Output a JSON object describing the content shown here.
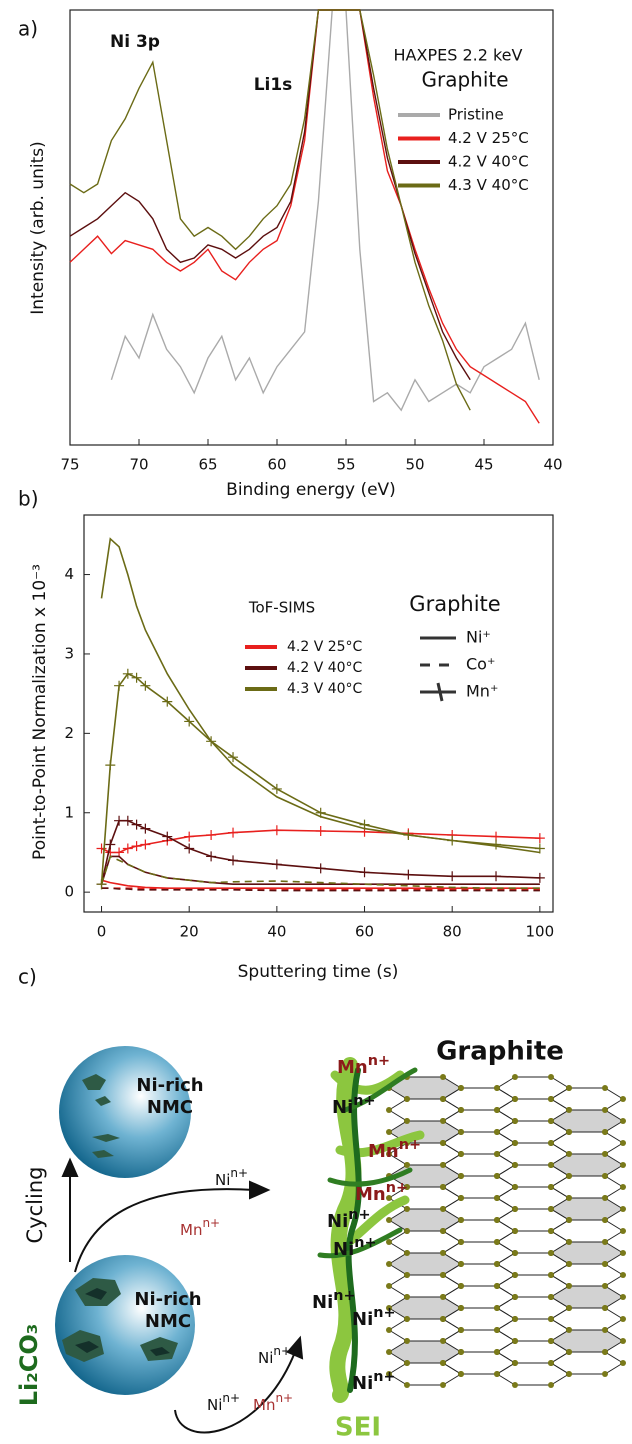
{
  "chart_data": [
    {
      "type": "line",
      "panel_label": "a)",
      "xlabel": "Binding energy (eV)",
      "ylabel": "Intensity (arb. units)",
      "annotations": [
        "Ni 3p",
        "Li1s"
      ],
      "legend_title": "HAXPES 2.2 keV",
      "legend_subtitle": "Graphite",
      "x": [
        75,
        74,
        73,
        72,
        71,
        70,
        69,
        68,
        67,
        66,
        65,
        64,
        63,
        62,
        61,
        60,
        59,
        58,
        57,
        56,
        55,
        54,
        53,
        52,
        51,
        50,
        49,
        48,
        47,
        46,
        45,
        44,
        43,
        42,
        41,
        40
      ],
      "xlim": [
        75,
        40
      ],
      "xticks": [
        75,
        70,
        65,
        60,
        55,
        50,
        45,
        40
      ],
      "ylim": [
        0,
        100
      ],
      "series": [
        {
          "name": "Pristine",
          "color": "#aaaaaa",
          "values": [
            null,
            null,
            null,
            15,
            25,
            20,
            30,
            22,
            18,
            12,
            20,
            25,
            15,
            20,
            12,
            18,
            22,
            26,
            56,
            100,
            100,
            45,
            10,
            12,
            8,
            15,
            10,
            12,
            14,
            12,
            18,
            20,
            22,
            28,
            15,
            null
          ]
        },
        {
          "name": "4.2 V 25°C",
          "color": "#e8201e",
          "values": [
            42,
            45,
            48,
            44,
            47,
            46,
            45,
            42,
            40,
            42,
            45,
            40,
            38,
            42,
            45,
            47,
            55,
            70,
            100,
            100,
            100,
            100,
            80,
            63,
            55,
            45,
            36,
            28,
            22,
            18,
            16,
            14,
            12,
            10,
            5,
            null
          ]
        },
        {
          "name": "4.2 V 40°C",
          "color": "#5c0f0f",
          "values": [
            48,
            50,
            52,
            55,
            58,
            56,
            52,
            45,
            42,
            43,
            46,
            45,
            43,
            45,
            48,
            50,
            56,
            72,
            100,
            100,
            100,
            100,
            82,
            66,
            55,
            44,
            35,
            26,
            20,
            15,
            null,
            null,
            null,
            null,
            null,
            null
          ]
        },
        {
          "name": "4.3 V 40°C",
          "color": "#6b6b16",
          "values": [
            60,
            58,
            60,
            70,
            75,
            82,
            88,
            70,
            52,
            48,
            50,
            48,
            45,
            48,
            52,
            55,
            60,
            75,
            100,
            100,
            100,
            100,
            85,
            68,
            55,
            42,
            32,
            24,
            14,
            8,
            null,
            null,
            null,
            null,
            null,
            null
          ]
        }
      ]
    },
    {
      "type": "line",
      "panel_label": "b)",
      "xlabel": "Sputtering time (s)",
      "ylabel": "Point-to-Point Normalization x 10⁻³",
      "legend_title": "ToF-SIMS",
      "style_title": "Graphite",
      "ions": [
        {
          "name": "Ni⁺",
          "dash": "solid"
        },
        {
          "name": "Co⁺",
          "dash": "dashed"
        },
        {
          "name": "Mn⁺",
          "dash": "solid",
          "marker": "+"
        }
      ],
      "x": [
        0,
        2,
        4,
        6,
        8,
        10,
        15,
        20,
        25,
        30,
        40,
        50,
        60,
        70,
        80,
        90,
        100
      ],
      "xlim": [
        -4,
        103
      ],
      "xticks": [
        0,
        20,
        40,
        60,
        80,
        100
      ],
      "ylim": [
        -0.25,
        4.75
      ],
      "yticks": [
        0,
        1,
        2,
        3,
        4
      ],
      "series": [
        {
          "name": "4.2 V 25°C",
          "color": "#e8201e",
          "lines": [
            {
              "values": [
                0.15,
                0.12,
                0.1,
                0.08,
                0.07,
                0.06,
                0.05,
                0.05,
                0.05,
                0.05,
                0.05,
                0.05,
                0.05,
                0.05,
                0.05,
                0.05,
                0.05
              ]
            },
            {
              "values": [
                0.05,
                0.05,
                0.05,
                0.05,
                0.05,
                0.04,
                0.04,
                0.04,
                0.04,
                0.04,
                0.04,
                0.03,
                0.03,
                0.03,
                0.03,
                0.03,
                0.03
              ]
            },
            {
              "values": [
                0.55,
                0.5,
                0.5,
                0.55,
                0.58,
                0.6,
                0.65,
                0.7,
                0.72,
                0.75,
                0.78,
                0.77,
                0.76,
                0.74,
                0.72,
                0.7,
                0.68
              ]
            }
          ]
        },
        {
          "name": "4.2 V 40°C",
          "color": "#5c0f0f",
          "lines": [
            {
              "values": [
                0.1,
                0.45,
                0.45,
                0.35,
                0.3,
                0.25,
                0.18,
                0.15,
                0.12,
                0.1,
                0.1,
                0.1,
                0.1,
                0.1,
                0.1,
                0.1,
                0.1
              ]
            },
            {
              "values": [
                0.05,
                0.05,
                0.04,
                0.04,
                0.03,
                0.03,
                0.03,
                0.03,
                0.03,
                0.03,
                0.02,
                0.02,
                0.02,
                0.02,
                0.02,
                0.02,
                0.02
              ]
            },
            {
              "values": [
                0.1,
                0.6,
                0.9,
                0.9,
                0.85,
                0.8,
                0.7,
                0.55,
                0.45,
                0.4,
                0.35,
                0.3,
                0.25,
                0.22,
                0.2,
                0.2,
                0.18
              ]
            }
          ]
        },
        {
          "name": "4.3 V 40°C",
          "color": "#6b6b16",
          "lines": [
            {
              "values": [
                3.7,
                4.45,
                4.35,
                4.0,
                3.6,
                3.3,
                2.75,
                2.3,
                1.9,
                1.6,
                1.2,
                0.95,
                0.8,
                0.72,
                0.65,
                0.58,
                0.5
              ]
            },
            {
              "values": [
                0.1,
                0.45,
                0.4,
                0.35,
                0.3,
                0.25,
                0.18,
                0.15,
                0.12,
                0.13,
                0.14,
                0.12,
                0.1,
                0.08,
                0.06,
                0.05,
                0.05
              ]
            },
            {
              "values": [
                0.1,
                1.6,
                2.6,
                2.75,
                2.7,
                2.6,
                2.4,
                2.15,
                1.9,
                1.7,
                1.3,
                1.0,
                0.85,
                0.72,
                0.65,
                0.6,
                0.55
              ]
            }
          ]
        }
      ]
    }
  ],
  "diagram": {
    "panel_label": "c)",
    "graphite": "Graphite",
    "sei": "SEI",
    "cycling": "Cycling",
    "li2co3": "Li₂CO₃",
    "particles": [
      [
        "Ni-rich",
        "NMC"
      ],
      [
        "Ni-rich",
        "NMC"
      ]
    ],
    "ions": [
      {
        "base": "Mn",
        "sup": "n+",
        "color": "#8b1a1a"
      },
      {
        "base": "Ni",
        "sup": "n+",
        "color": "#111111"
      },
      {
        "base": "Mn",
        "sup": "n+",
        "color": "#8b1a1a"
      },
      {
        "base": "Mn",
        "sup": "n+",
        "color": "#8b1a1a"
      },
      {
        "base": "Ni",
        "sup": "n+",
        "color": "#111111"
      },
      {
        "base": "Ni",
        "sup": "n+",
        "color": "#111111"
      },
      {
        "base": "Ni",
        "sup": "n+",
        "color": "#111111"
      },
      {
        "base": "Ni",
        "sup": "n+",
        "color": "#111111"
      },
      {
        "base": "Ni",
        "sup": "n+",
        "color": "#111111"
      },
      {
        "base": "Ni",
        "sup": "n+",
        "color": "#111111"
      },
      {
        "base": "Mn",
        "sup": "n+",
        "color": "#a83232"
      },
      {
        "base": "Ni",
        "sup": "n+",
        "color": "#111111"
      },
      {
        "base": "Ni",
        "sup": "n+",
        "color": "#111111"
      },
      {
        "base": "Mn",
        "sup": "n+",
        "color": "#a83232"
      }
    ]
  }
}
